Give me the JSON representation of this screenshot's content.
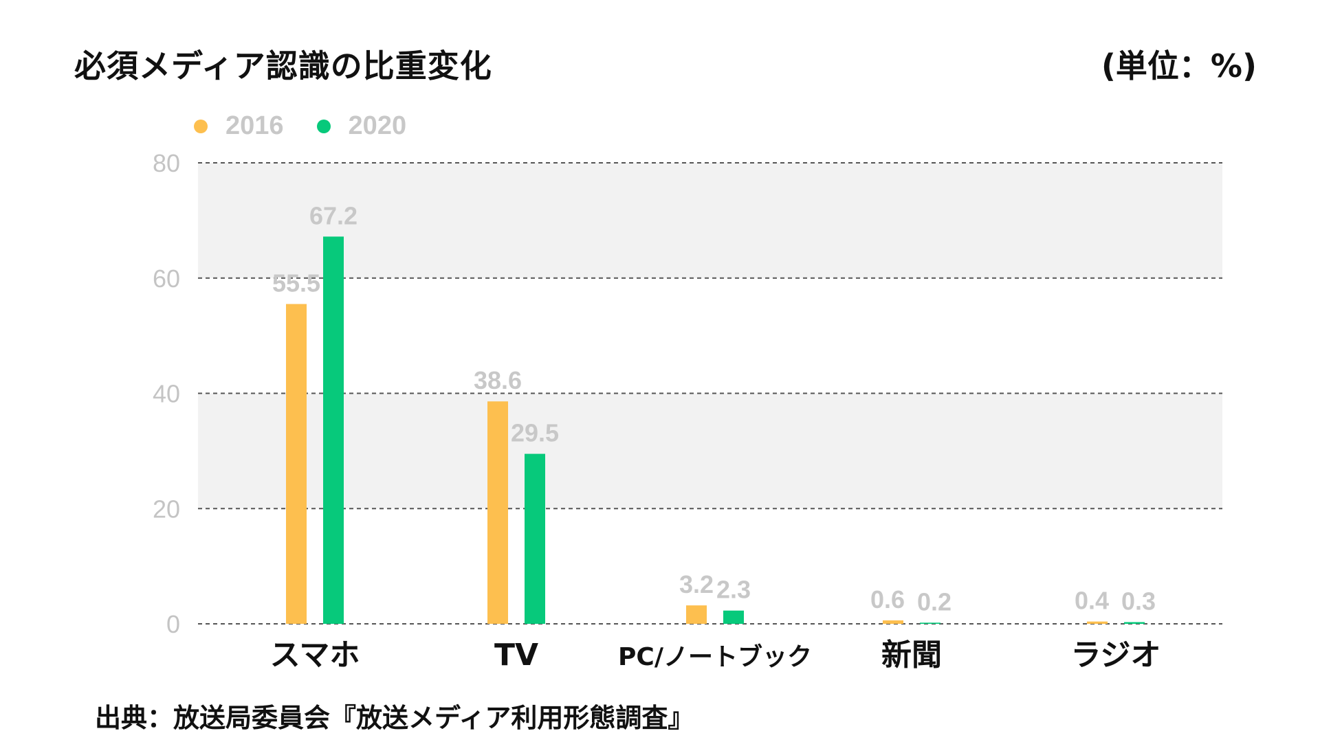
{
  "header": {
    "title": "必須メディア認識の比重変化",
    "unit": "(単位：%)"
  },
  "legend": [
    {
      "label": "2016",
      "color": "#fdbf4f"
    },
    {
      "label": "2020",
      "color": "#07c97b"
    }
  ],
  "chart_data": {
    "type": "bar",
    "title": "必須メディア認識の比重変化",
    "ylabel": "",
    "xlabel": "",
    "categories": [
      "スマホ",
      "TV",
      "PC/ノートブック",
      "新聞",
      "ラジオ"
    ],
    "series": [
      {
        "name": "2016",
        "color": "#fdbf4f",
        "values": [
          55.5,
          38.6,
          3.2,
          0.6,
          0.4
        ]
      },
      {
        "name": "2020",
        "color": "#07c97b",
        "values": [
          67.2,
          29.5,
          2.3,
          0.2,
          0.3
        ]
      }
    ],
    "ylim": [
      0,
      80
    ],
    "yticks": [
      "0",
      "20",
      "40",
      "60",
      "80"
    ],
    "grid": "dashed horizontal",
    "legend_position": "top-left"
  },
  "footer": {
    "source": "出典：放送局委員会『放送メディア利用形態調査』"
  }
}
